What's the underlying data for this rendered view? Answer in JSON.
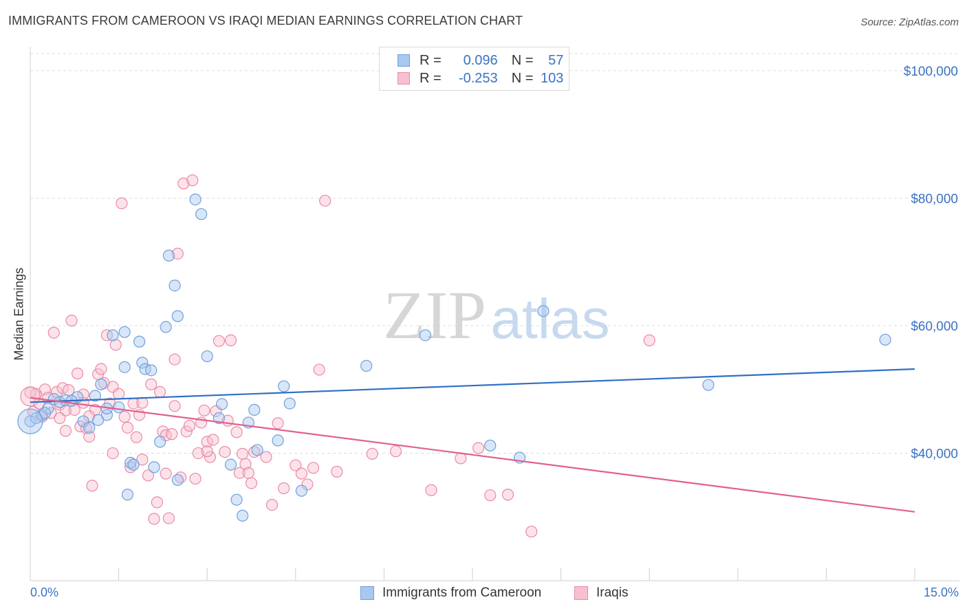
{
  "title": "IMMIGRANTS FROM CAMEROON VS IRAQI MEDIAN EARNINGS CORRELATION CHART",
  "source": "Source: ZipAtlas.com",
  "watermark": {
    "zip": "ZIP",
    "atlas": "atlas"
  },
  "legend": {
    "rows": [
      {
        "r_label": "R =",
        "r_value": "0.096",
        "n_label": "N =",
        "n_value": "57",
        "color": "#a9c8f0",
        "border": "#6f9fdc"
      },
      {
        "r_label": "R =",
        "r_value": "-0.253",
        "n_label": "N =",
        "n_value": "103",
        "color": "#f7c0cf",
        "border": "#e98aa6"
      }
    ]
  },
  "colors": {
    "blue": "#2f6fc6",
    "pink": "#e0608e",
    "blue_fill": "#a9c8f0",
    "pink_fill": "#f7c0cf",
    "grid": "#dddddd",
    "tick_text": "#3a72c4"
  },
  "chart_data": {
    "type": "scatter",
    "title": "IMMIGRANTS FROM CAMEROON VS IRAQI MEDIAN EARNINGS CORRELATION CHART",
    "xlabel": "",
    "ylabel": "Median Earnings",
    "xlim": [
      0,
      15
    ],
    "ylim": [
      20000,
      103000
    ],
    "x_tick_labels": [
      "0.0%",
      "15.0%"
    ],
    "y_ticks": [
      40000,
      60000,
      80000,
      100000
    ],
    "y_tick_labels": [
      "$40,000",
      "$60,000",
      "$80,000",
      "$100,000"
    ],
    "grid": "horizontal dashed",
    "legend_position": "bottom",
    "series": [
      {
        "name": "Immigrants from Cameroon",
        "color": "#2f6fc6",
        "points": [
          [
            0.0,
            45000
          ],
          [
            0.1,
            45500
          ],
          [
            0.2,
            46000
          ],
          [
            0.3,
            47000
          ],
          [
            0.4,
            48500
          ],
          [
            0.5,
            48000
          ],
          [
            0.6,
            48300
          ],
          [
            0.8,
            48800
          ],
          [
            0.9,
            45000
          ],
          [
            1.0,
            44000
          ],
          [
            1.1,
            49000
          ],
          [
            1.2,
            50800
          ],
          [
            1.15,
            45200
          ],
          [
            1.3,
            46000
          ],
          [
            1.4,
            58500
          ],
          [
            1.5,
            47200
          ],
          [
            1.6,
            59000
          ],
          [
            1.6,
            53500
          ],
          [
            1.65,
            33500
          ],
          [
            1.7,
            38500
          ],
          [
            1.75,
            38200
          ],
          [
            1.85,
            57500
          ],
          [
            1.9,
            54200
          ],
          [
            1.95,
            53200
          ],
          [
            2.05,
            53000
          ],
          [
            2.1,
            37800
          ],
          [
            2.2,
            41800
          ],
          [
            2.3,
            59800
          ],
          [
            2.35,
            71000
          ],
          [
            2.45,
            66300
          ],
          [
            2.5,
            61500
          ],
          [
            2.5,
            35800
          ],
          [
            2.8,
            79800
          ],
          [
            2.9,
            77500
          ],
          [
            3.0,
            55200
          ],
          [
            3.2,
            45500
          ],
          [
            3.25,
            47700
          ],
          [
            3.4,
            38200
          ],
          [
            3.5,
            32700
          ],
          [
            3.6,
            30200
          ],
          [
            3.7,
            44800
          ],
          [
            3.8,
            46800
          ],
          [
            3.85,
            40500
          ],
          [
            4.2,
            42000
          ],
          [
            4.3,
            50500
          ],
          [
            4.4,
            47800
          ],
          [
            4.6,
            34100
          ],
          [
            5.7,
            53700
          ],
          [
            6.7,
            58500
          ],
          [
            7.8,
            41200
          ],
          [
            8.3,
            39300
          ],
          [
            8.7,
            62300
          ],
          [
            11.5,
            50700
          ],
          [
            14.5,
            57800
          ],
          [
            1.3,
            47000
          ],
          [
            0.7,
            48200
          ],
          [
            0.25,
            46300
          ]
        ]
      },
      {
        "name": "Iraqis",
        "color": "#e0608e",
        "points": [
          [
            0.05,
            46500
          ],
          [
            0.1,
            49300
          ],
          [
            0.15,
            47800
          ],
          [
            0.2,
            45700
          ],
          [
            0.25,
            50000
          ],
          [
            0.3,
            48700
          ],
          [
            0.35,
            46300
          ],
          [
            0.4,
            58900
          ],
          [
            0.45,
            49600
          ],
          [
            0.5,
            47600
          ],
          [
            0.55,
            50200
          ],
          [
            0.6,
            46700
          ],
          [
            0.65,
            49900
          ],
          [
            0.7,
            60800
          ],
          [
            0.75,
            46800
          ],
          [
            0.8,
            52500
          ],
          [
            0.85,
            44200
          ],
          [
            0.9,
            49200
          ],
          [
            0.95,
            43900
          ],
          [
            1.0,
            42600
          ],
          [
            1.05,
            34900
          ],
          [
            1.1,
            46800
          ],
          [
            1.15,
            52400
          ],
          [
            1.2,
            53200
          ],
          [
            1.25,
            51000
          ],
          [
            1.3,
            58500
          ],
          [
            1.35,
            47800
          ],
          [
            1.4,
            50400
          ],
          [
            1.45,
            57000
          ],
          [
            1.5,
            49300
          ],
          [
            1.55,
            79200
          ],
          [
            1.6,
            45700
          ],
          [
            1.65,
            44000
          ],
          [
            1.7,
            37800
          ],
          [
            1.75,
            47800
          ],
          [
            1.8,
            42500
          ],
          [
            1.85,
            46000
          ],
          [
            1.9,
            39000
          ],
          [
            2.0,
            36500
          ],
          [
            2.05,
            50800
          ],
          [
            2.1,
            29700
          ],
          [
            2.15,
            32300
          ],
          [
            2.2,
            49600
          ],
          [
            2.25,
            43400
          ],
          [
            2.3,
            42800
          ],
          [
            2.35,
            29800
          ],
          [
            2.4,
            43000
          ],
          [
            2.45,
            54700
          ],
          [
            2.5,
            71300
          ],
          [
            2.55,
            36200
          ],
          [
            2.6,
            82300
          ],
          [
            2.65,
            43400
          ],
          [
            2.7,
            44300
          ],
          [
            2.75,
            82800
          ],
          [
            2.8,
            36000
          ],
          [
            2.85,
            40000
          ],
          [
            2.9,
            44800
          ],
          [
            2.95,
            46700
          ],
          [
            3.0,
            41800
          ],
          [
            3.05,
            39400
          ],
          [
            3.1,
            42100
          ],
          [
            3.15,
            46600
          ],
          [
            3.2,
            57600
          ],
          [
            3.3,
            40200
          ],
          [
            3.35,
            45100
          ],
          [
            3.4,
            57700
          ],
          [
            3.5,
            43300
          ],
          [
            3.55,
            36900
          ],
          [
            3.6,
            39900
          ],
          [
            3.65,
            38300
          ],
          [
            3.7,
            36900
          ],
          [
            3.75,
            35300
          ],
          [
            3.8,
            40200
          ],
          [
            4.0,
            39400
          ],
          [
            4.1,
            31900
          ],
          [
            4.2,
            44700
          ],
          [
            4.3,
            34500
          ],
          [
            4.5,
            38100
          ],
          [
            4.6,
            36800
          ],
          [
            4.7,
            35100
          ],
          [
            4.8,
            37700
          ],
          [
            4.9,
            53100
          ],
          [
            5.0,
            79600
          ],
          [
            5.2,
            37100
          ],
          [
            5.8,
            39900
          ],
          [
            6.2,
            40300
          ],
          [
            6.8,
            34200
          ],
          [
            7.3,
            39200
          ],
          [
            7.8,
            33400
          ],
          [
            8.1,
            33500
          ],
          [
            8.5,
            27700
          ],
          [
            10.5,
            57700
          ],
          [
            0.0,
            49500
          ],
          [
            0.5,
            45500
          ],
          [
            1.0,
            45800
          ],
          [
            0.9,
            47900
          ],
          [
            1.9,
            47900
          ],
          [
            2.45,
            47400
          ],
          [
            0.6,
            43500
          ],
          [
            2.3,
            36800
          ],
          [
            3.0,
            40300
          ],
          [
            1.4,
            40000
          ],
          [
            7.6,
            40800
          ]
        ]
      }
    ],
    "trend_lines": [
      {
        "series": "Immigrants from Cameroon",
        "x": [
          0,
          15
        ],
        "y": [
          48000,
          53200
        ]
      },
      {
        "series": "Iraqis",
        "x": [
          0,
          15
        ],
        "y": [
          48700,
          30800
        ]
      }
    ]
  },
  "bottom_legend": [
    "Immigrants from Cameroon",
    "Iraqis"
  ]
}
